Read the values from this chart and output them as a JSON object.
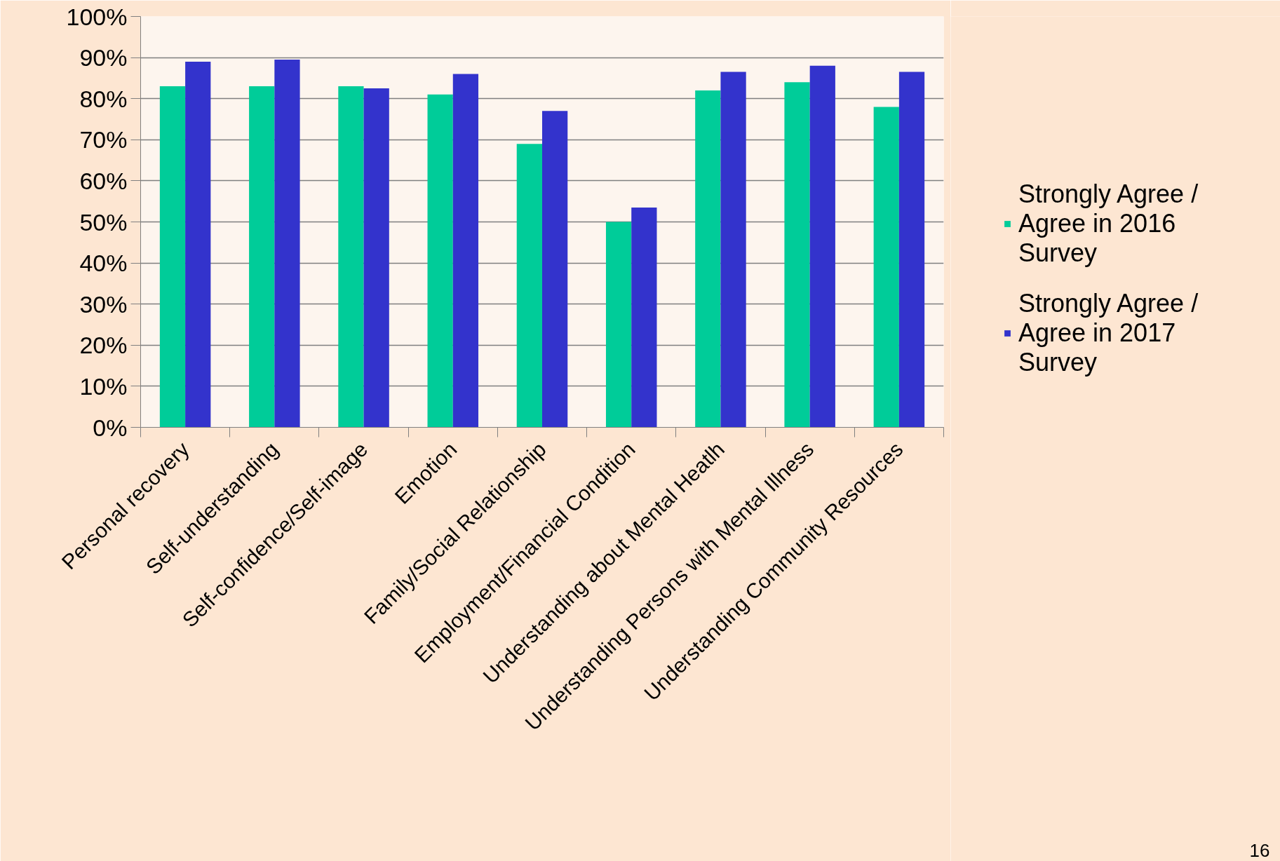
{
  "chart_data": {
    "type": "bar",
    "categories": [
      "Personal recovery",
      "Self-understanding",
      "Self-confidence/Self-image",
      "Emotion",
      "Family/Social Relationship",
      "Employment/Financial Condition",
      "Understanding about Mental Heatlh",
      "Understanding Persons with Mental Illness",
      "Understanding Community Resources"
    ],
    "series": [
      {
        "name": "Strongly Agree / Agree in 2016 Survey",
        "color": "#00cc99",
        "values": [
          83,
          83,
          83,
          81,
          69,
          50,
          82,
          84,
          78
        ]
      },
      {
        "name": "Strongly Agree / Agree in 2017 Survey",
        "color": "#3333cc",
        "values": [
          89,
          89.5,
          82.5,
          86,
          77,
          53.5,
          86.5,
          88,
          86.5
        ]
      }
    ],
    "ylim": [
      0,
      100
    ],
    "yticks": [
      {
        "value": 0,
        "label": "0%"
      },
      {
        "value": 10,
        "label": "10%"
      },
      {
        "value": 20,
        "label": "20%"
      },
      {
        "value": 30,
        "label": "30%"
      },
      {
        "value": 40,
        "label": "40%"
      },
      {
        "value": 50,
        "label": "50%"
      },
      {
        "value": 60,
        "label": "60%"
      },
      {
        "value": 70,
        "label": "70%"
      },
      {
        "value": 80,
        "label": "80%"
      },
      {
        "value": 90,
        "label": "90%"
      },
      {
        "value": 100,
        "label": "100%"
      }
    ],
    "grid": "y",
    "legend": "right",
    "annotations": [
      "16"
    ]
  }
}
